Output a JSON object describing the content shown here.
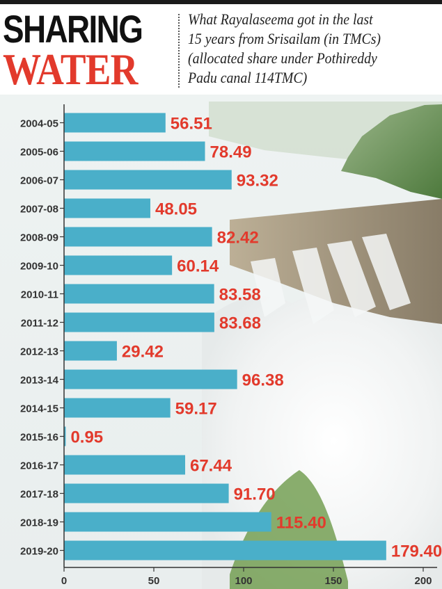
{
  "header": {
    "title_main": "SHARING",
    "title_sub": "WATER",
    "subtitle": "What Rayalaseema got in the last\n15 years from Srisailam (in TMCs)\n(allocated share under Pothireddy\nPadu canal 114TMC)"
  },
  "colors": {
    "bar": "#4aafc9",
    "value_label": "#e23a2c",
    "title_dark": "#111111",
    "title_red": "#e23a2c"
  },
  "chart_data": {
    "type": "bar",
    "orientation": "horizontal",
    "categories": [
      "2004-05",
      "2005-06",
      "2006-07",
      "2007-08",
      "2008-09",
      "2009-10",
      "2010-11",
      "2011-12",
      "2012-13",
      "2013-14",
      "2014-15",
      "2015-16",
      "2016-17",
      "2017-18",
      "2018-19",
      "2019-20"
    ],
    "values": [
      56.51,
      78.49,
      93.32,
      48.05,
      82.42,
      60.14,
      83.58,
      83.68,
      29.42,
      96.38,
      59.17,
      0.95,
      67.44,
      91.7,
      115.4,
      179.4
    ],
    "value_labels": [
      "56.51",
      "78.49",
      "93.32",
      "48.05",
      "82.42",
      "60.14",
      "83.58",
      "83.68",
      "29.42",
      "96.38",
      "59.17",
      "0.95",
      "67.44",
      "91.70",
      "115.40",
      "179.40"
    ],
    "xlim": [
      0,
      200
    ],
    "x_ticks": [
      "0",
      "50",
      "100",
      "150",
      "200"
    ],
    "grid": false,
    "legend": "none"
  }
}
